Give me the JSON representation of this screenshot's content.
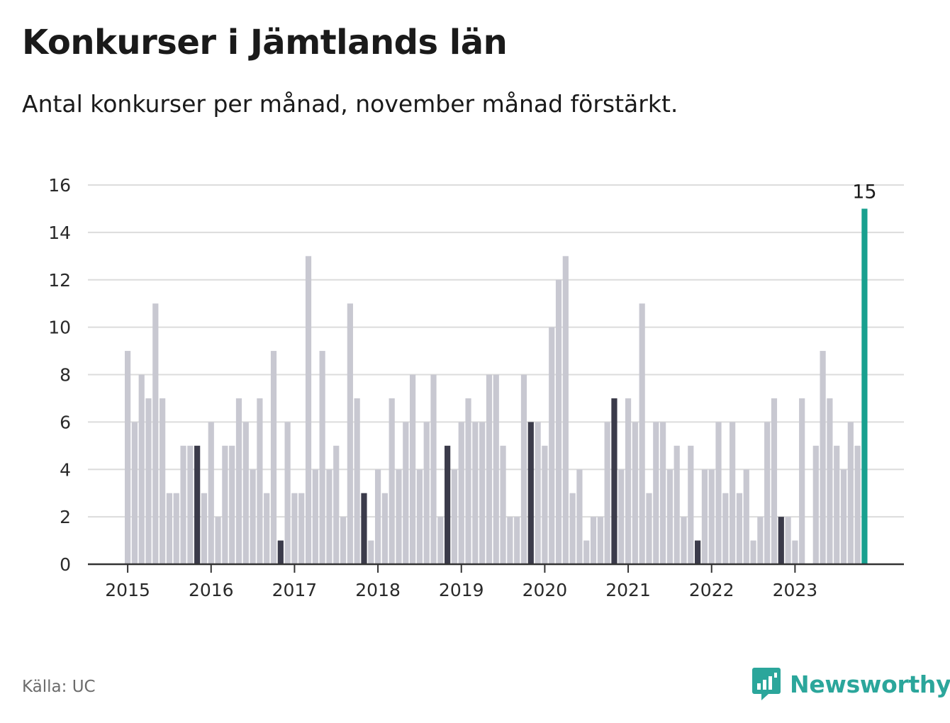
{
  "header": {
    "title": "Konkurser i Jämtlands län",
    "subtitle": "Antal konkurser per månad, november månad förstärkt."
  },
  "footer": {
    "source": "Källa: UC",
    "brand": "Newsworthy"
  },
  "colors": {
    "regular": "#c8c8d1",
    "november": "#3b3b4a",
    "latest": "#18a08f",
    "grid": "#dcdcdc",
    "axis": "#333333"
  },
  "chart_data": {
    "type": "bar",
    "ylim": [
      0,
      16
    ],
    "yticks": [
      0,
      2,
      4,
      6,
      8,
      10,
      12,
      14,
      16
    ],
    "xticks": [
      "2015",
      "2016",
      "2017",
      "2018",
      "2019",
      "2020",
      "2021",
      "2022",
      "2023"
    ],
    "first_month": "2015-01",
    "last_month": "2023-11",
    "annotation": {
      "month": "2023-11",
      "label": "15"
    },
    "values": [
      9,
      6,
      8,
      7,
      11,
      7,
      3,
      3,
      5,
      5,
      5,
      3,
      6,
      2,
      5,
      5,
      7,
      6,
      4,
      7,
      3,
      9,
      1,
      6,
      3,
      3,
      13,
      4,
      9,
      4,
      5,
      2,
      11,
      7,
      3,
      1,
      4,
      3,
      7,
      4,
      6,
      8,
      4,
      6,
      8,
      2,
      5,
      4,
      6,
      7,
      6,
      6,
      8,
      8,
      5,
      2,
      2,
      8,
      6,
      6,
      5,
      10,
      12,
      13,
      3,
      4,
      1,
      2,
      2,
      6,
      7,
      4,
      7,
      6,
      11,
      3,
      6,
      6,
      4,
      5,
      2,
      5,
      1,
      4,
      4,
      6,
      3,
      6,
      3,
      4,
      1,
      2,
      6,
      7,
      2,
      2,
      1,
      7,
      0,
      5,
      9,
      7,
      5,
      4,
      6,
      5,
      15
    ]
  }
}
